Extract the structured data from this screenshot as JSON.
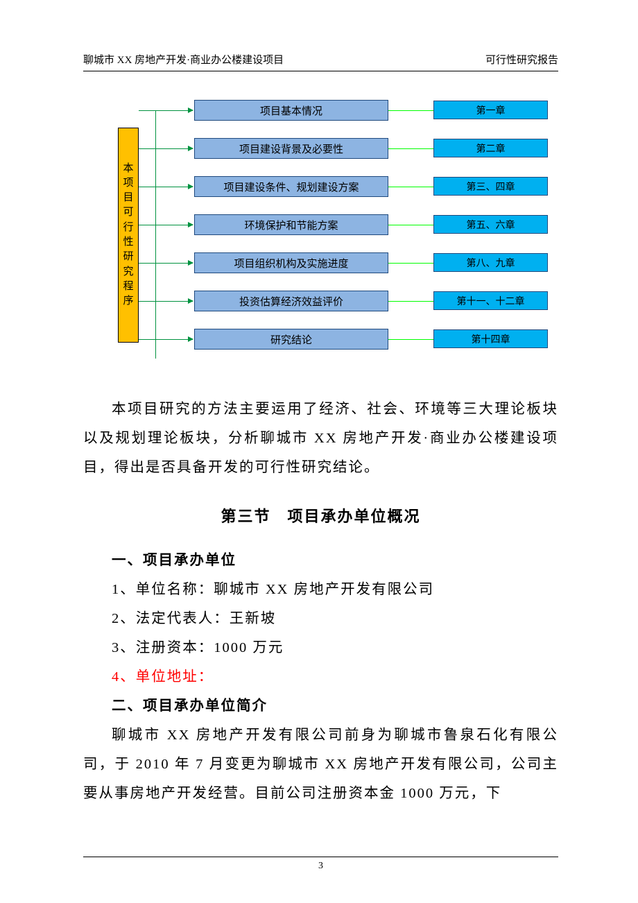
{
  "header": {
    "left": "聊城市 XX 房地产开发·商业办公楼建设项目",
    "right": "可行性研究报告"
  },
  "diagram": {
    "vertical_label_chars": [
      "本",
      "项",
      "目",
      "可",
      "行",
      "性",
      "研",
      "究",
      "程",
      "序"
    ],
    "vertical_bg": "#ffc000",
    "mid_bg": "#8db4e2",
    "right_bg": "#00b0f0",
    "box_border": "#1f497d",
    "connector_green": "#00923f",
    "connector_lime": "#00ff00",
    "rows": [
      {
        "mid": "项目基本情况",
        "right": "第一章"
      },
      {
        "mid": "项目建设背景及必要性",
        "right": "第二章"
      },
      {
        "mid": "项目建设条件、规划建设方案",
        "right": "第三、四章"
      },
      {
        "mid": "环境保护和节能方案",
        "right": "第五、六章"
      },
      {
        "mid": "项目组织机构及实施进度",
        "right": "第八、九章"
      },
      {
        "mid": "投资估算经济效益评价",
        "right": "第十一、十二章"
      },
      {
        "mid": "研究结论",
        "right": "第十四章"
      }
    ]
  },
  "paragraphs": {
    "p1": "本项目研究的方法主要运用了经济、社会、环境等三大理论板块以及规划理论板块，分析聊城市 XX 房地产开发·商业办公楼建设项目，得出是否具备开发的可行性研究结论。"
  },
  "section_title": "第三节　项目承办单位概况",
  "sub1": "一、项目承办单位",
  "items": {
    "i1": "1、单位名称：聊城市 XX 房地产开发有限公司",
    "i2": "2、法定代表人：王新坡",
    "i3": "3、注册资本：1000 万元",
    "i4": "4、单位地址："
  },
  "sub2": "二、项目承办单位简介",
  "paragraphs2": {
    "p2": "聊城市 XX 房地产开发有限公司前身为聊城市鲁泉石化有限公司，于 2010 年 7 月变更为聊城市 XX 房地产开发有限公司，公司主要从事房地产开发经营。目前公司注册资本金 1000 万元，下"
  },
  "page_number": "3"
}
